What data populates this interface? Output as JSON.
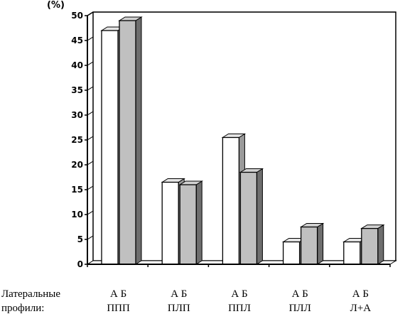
{
  "chart_data": {
    "type": "bar",
    "unit_label": "(%)",
    "row_label_line1": "Латеральные",
    "row_label_line2": "профили:",
    "categories": [
      "ППП",
      "ПЛП",
      "ППЛ",
      "ПЛЛ",
      "Л+А"
    ],
    "series": [
      {
        "name": "А",
        "values": [
          47,
          16.5,
          25.5,
          4.5,
          4.5
        ],
        "color": "#ffffff"
      },
      {
        "name": "Б",
        "values": [
          49,
          16,
          18.5,
          7.5,
          7.2
        ],
        "color": "#c0c0c0"
      }
    ],
    "ylim": [
      0,
      50
    ],
    "yticks": [
      0,
      5,
      10,
      15,
      20,
      25,
      30,
      35,
      40,
      45,
      50
    ],
    "grid": true
  }
}
